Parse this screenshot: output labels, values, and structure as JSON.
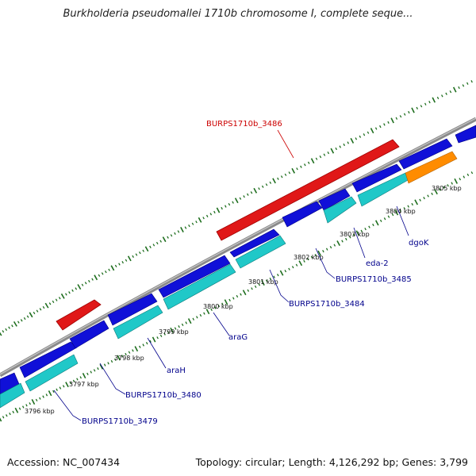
{
  "title": "Burkholderia pseudomallei 1710b chromosome I, complete seque...",
  "footer": {
    "accession": "Accession: NC_007434",
    "summary": "Topology: circular; Length: 4,126,292 bp; Genes: 3,799"
  },
  "colors": {
    "backbone": "#8a8a8a",
    "tick": "#1e6e1e",
    "gene_blue": "#1010d8",
    "gene_cyan": "#20c8c8",
    "gene_red": "#e01818",
    "gene_orange": "#ff8c00",
    "label_blue": "#00008b",
    "label_red": "#cc0000"
  },
  "ticks": [
    {
      "label": "3796 kbp"
    },
    {
      "label": "3797 kbp"
    },
    {
      "label": "3798 kbp"
    },
    {
      "label": "3799 kbp"
    },
    {
      "label": "3800 kbp"
    },
    {
      "label": "3801 kbp"
    },
    {
      "label": "3802 kbp"
    },
    {
      "label": "3803 kbp"
    },
    {
      "label": "3804 kbp"
    },
    {
      "label": "3805 kbp"
    }
  ],
  "gene_labels": [
    {
      "text": "BURPS1710b_3486",
      "color": "red"
    },
    {
      "text": "dgoK",
      "color": "blue"
    },
    {
      "text": "eda-2",
      "color": "blue"
    },
    {
      "text": "BURPS1710b_3485",
      "color": "blue"
    },
    {
      "text": "BURPS1710b_3484",
      "color": "blue"
    },
    {
      "text": "araG",
      "color": "blue"
    },
    {
      "text": "araH",
      "color": "blue"
    },
    {
      "text": "BURPS1710b_3480",
      "color": "blue"
    },
    {
      "text": "BURPS1710b_3479",
      "color": "blue"
    }
  ]
}
